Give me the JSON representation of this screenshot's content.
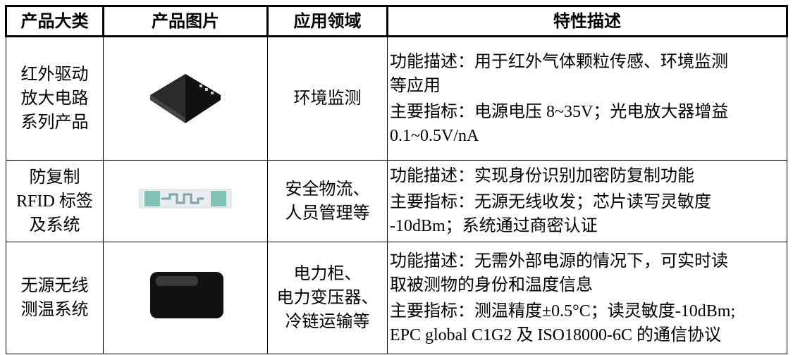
{
  "table": {
    "header": [
      "产品大类",
      "产品图片",
      "应用领域",
      "特性描述"
    ],
    "rows": [
      {
        "category": [
          "红外驱动",
          "放大电路",
          "系列产品"
        ],
        "application": [
          "环境监测"
        ],
        "features": [
          [
            "功能描述：用于红外气体颗粒传感、环境监测",
            "等应用"
          ],
          [
            "主要指标：电源电压 8~35V；光电放大器增益",
            "0.1~0.5V/nA"
          ]
        ]
      },
      {
        "category": [
          "防复制",
          "RFID 标签",
          "及系统"
        ],
        "application": [
          "安全物流、",
          "人员管理等"
        ],
        "features": [
          [
            "功能描述：实现身份识别加密防复制功能"
          ],
          [
            "主要指标：无源无线收发；芯片读写灵敏度",
            "-10dBm；系统通过商密认证"
          ]
        ]
      },
      {
        "category": [
          "无源无线",
          "测温系统"
        ],
        "application": [
          "电力柜、",
          "电力变压器、",
          "冷链运输等"
        ],
        "features": [
          [
            "功能描述：无需外部电源的情况下，可实时读",
            "取被测物的身份和温度信息"
          ],
          [
            "主要指标：测温精度±0.5°C；读灵敏度-10dBm;",
            "EPC global C1G2 及 ISO18000-6C 的通信协议"
          ]
        ]
      }
    ]
  }
}
